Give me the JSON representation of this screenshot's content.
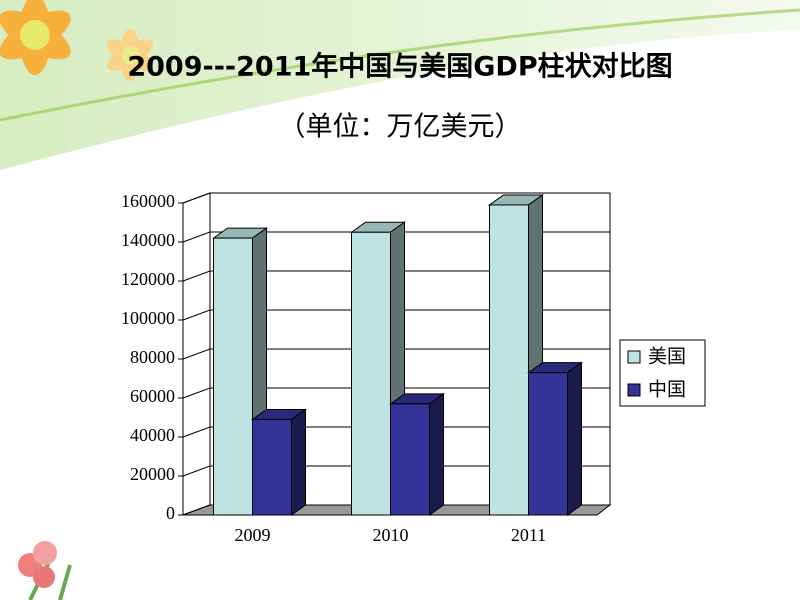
{
  "chart_data": {
    "type": "bar3d",
    "title": "2009---2011年中国与美国GDP柱状对比图",
    "subtitle": "（单位：万亿美元）",
    "categories": [
      "2009",
      "2010",
      "2011"
    ],
    "series": [
      {
        "name": "美国",
        "color": "#bfe3e3",
        "values": [
          142000,
          145000,
          159000
        ]
      },
      {
        "name": "中国",
        "color": "#333399",
        "values": [
          49000,
          57000,
          73000
        ]
      }
    ],
    "ylim": [
      0,
      160000
    ],
    "yticks": [
      0,
      20000,
      40000,
      60000,
      80000,
      100000,
      120000,
      140000,
      160000
    ],
    "grid": true,
    "legend": "right"
  }
}
